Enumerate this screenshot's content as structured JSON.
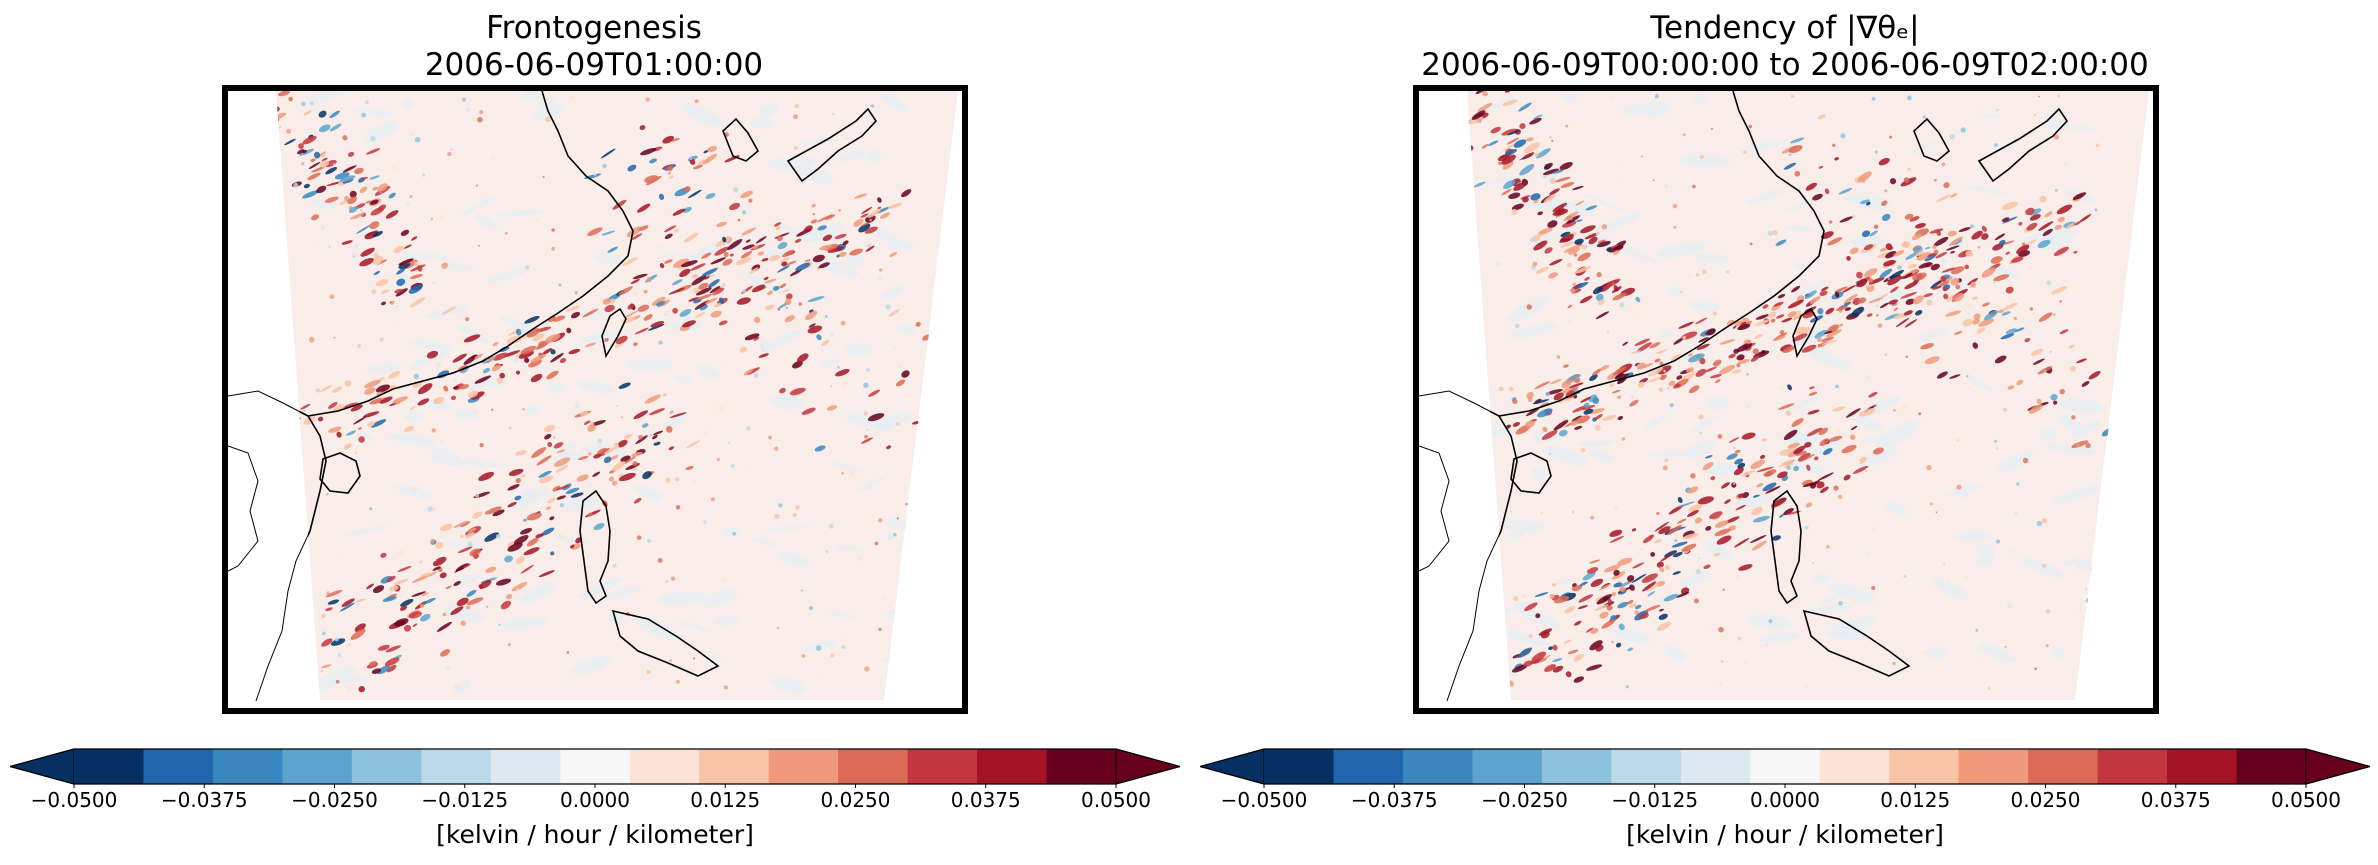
{
  "panels": [
    {
      "title": "Frontogenesis",
      "subtitle": "2006-06-09T01:00:00",
      "seed": 11,
      "intensity": 0.75
    },
    {
      "title": "Tendency of |∇θₑ|",
      "subtitle": "2006-06-09T00:00:00 to 2006-06-09T02:00:00",
      "seed": 29,
      "intensity": 1.0
    }
  ],
  "colorbar": {
    "colors": [
      "#053061",
      "#2166ac",
      "#3a87bf",
      "#5ca4cd",
      "#8dc2de",
      "#bad9e9",
      "#dce9f1",
      "#f7f7f7",
      "#fbe4d6",
      "#f9c3a6",
      "#f09a7b",
      "#dd6a56",
      "#c4363e",
      "#a51426",
      "#67001f"
    ],
    "under_color": "#053061",
    "over_color": "#67001f",
    "ticks": [
      "−0.0500",
      "−0.0375",
      "−0.0250",
      "−0.0125",
      "0.0000",
      "0.0125",
      "0.0250",
      "0.0375",
      "0.0500"
    ],
    "label": "[kelvin / hour / kilometer]"
  }
}
